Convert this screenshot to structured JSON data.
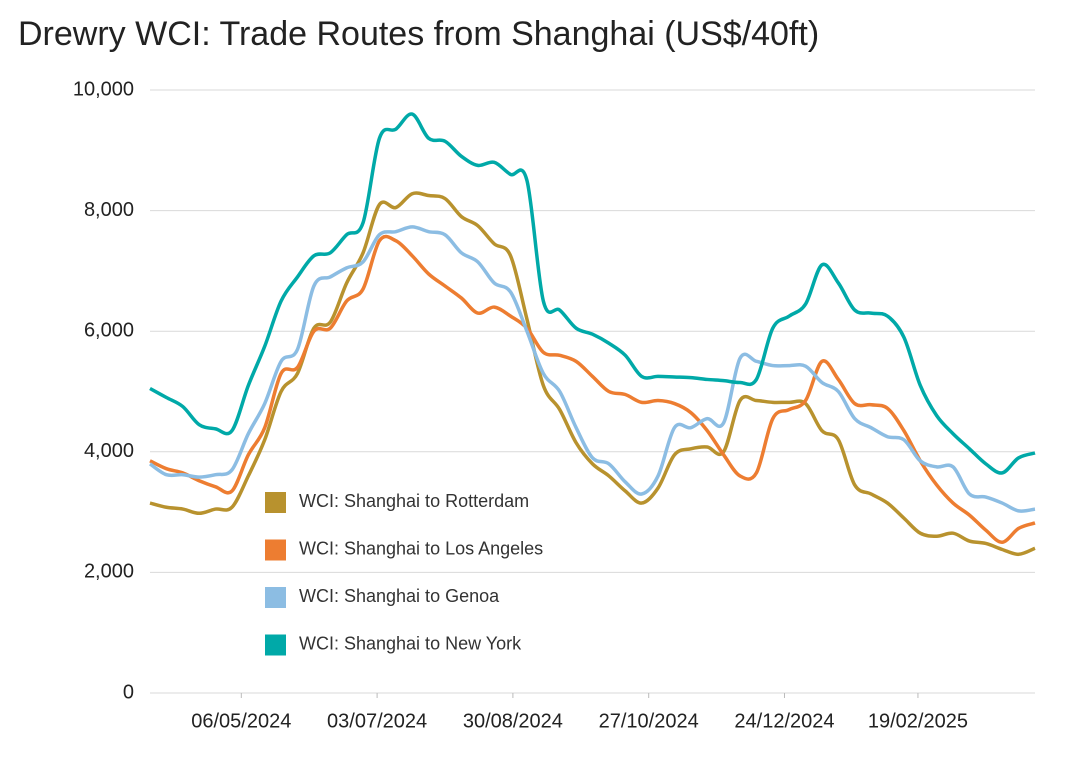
{
  "chart_data": {
    "type": "line",
    "title": "Drewry WCI: Trade Routes from Shanghai (US$/40ft)",
    "x": [
      "28/03/2024",
      "04/04/2024",
      "11/04/2024",
      "18/04/2024",
      "25/04/2024",
      "02/05/2024",
      "09/05/2024",
      "16/05/2024",
      "23/05/2024",
      "30/05/2024",
      "06/06/2024",
      "13/06/2024",
      "20/06/2024",
      "27/06/2024",
      "04/07/2024",
      "11/07/2024",
      "18/07/2024",
      "25/07/2024",
      "01/08/2024",
      "08/08/2024",
      "15/08/2024",
      "22/08/2024",
      "29/08/2024",
      "05/09/2024",
      "12/09/2024",
      "19/09/2024",
      "26/09/2024",
      "03/10/2024",
      "10/10/2024",
      "17/10/2024",
      "24/10/2024",
      "31/10/2024",
      "07/11/2024",
      "14/11/2024",
      "21/11/2024",
      "28/11/2024",
      "05/12/2024",
      "12/12/2024",
      "19/12/2024",
      "26/12/2024",
      "02/01/2025",
      "09/01/2025",
      "16/01/2025",
      "23/01/2025",
      "30/01/2025",
      "06/02/2025",
      "13/02/2025",
      "20/02/2025",
      "27/02/2025",
      "06/03/2025",
      "13/03/2025",
      "20/03/2025",
      "27/03/2025",
      "03/04/2025",
      "10/04/2025"
    ],
    "xlim": [
      "28/03/2024",
      "10/04/2025"
    ],
    "xticks": [
      "06/05/2024",
      "03/07/2024",
      "30/08/2024",
      "27/10/2024",
      "24/12/2024",
      "19/02/2025"
    ],
    "ylim": [
      0,
      10000
    ],
    "yticks": [
      0,
      {
        "value": 2000,
        "label": "2,000"
      },
      {
        "value": 4000,
        "label": "4,000"
      },
      {
        "value": 6000,
        "label": "6,000"
      },
      {
        "value": 8000,
        "label": "8,000"
      },
      {
        "value": 10000,
        "label": "10,000"
      }
    ],
    "grid": true,
    "legend_position": "lower left",
    "series": [
      {
        "name": "WCI: Shanghai to Rotterdam",
        "color": "#b8922e",
        "values": [
          3150,
          3080,
          3050,
          2980,
          3050,
          3080,
          3600,
          4200,
          5000,
          5300,
          6050,
          6150,
          6800,
          7300,
          8100,
          8050,
          8280,
          8250,
          8200,
          7900,
          7750,
          7450,
          7250,
          6200,
          5100,
          4700,
          4150,
          3800,
          3600,
          3350,
          3150,
          3400,
          3950,
          4050,
          4080,
          4000,
          4850,
          4850,
          4820,
          4820,
          4800,
          4350,
          4200,
          3450,
          3300,
          3150,
          2900,
          2650,
          2600,
          2650,
          2520,
          2480,
          2380,
          2300,
          2400
        ]
      },
      {
        "name": "WCI: Shanghai to Los Angeles",
        "color": "#ed7d31",
        "values": [
          3850,
          3720,
          3650,
          3520,
          3420,
          3350,
          3950,
          4400,
          5300,
          5400,
          6000,
          6050,
          6500,
          6700,
          7500,
          7500,
          7250,
          6950,
          6750,
          6550,
          6300,
          6400,
          6250,
          6050,
          5650,
          5600,
          5500,
          5250,
          5000,
          4950,
          4820,
          4850,
          4800,
          4650,
          4350,
          3950,
          3600,
          3650,
          4550,
          4700,
          4850,
          5500,
          5200,
          4800,
          4780,
          4720,
          4350,
          3850,
          3450,
          3150,
          2950,
          2700,
          2500,
          2730,
          2820
        ]
      },
      {
        "name": "WCI: Shanghai to Genoa",
        "color": "#8cbde3",
        "values": [
          3800,
          3620,
          3620,
          3580,
          3620,
          3700,
          4300,
          4800,
          5500,
          5700,
          6750,
          6900,
          7050,
          7150,
          7600,
          7650,
          7730,
          7650,
          7600,
          7300,
          7150,
          6800,
          6650,
          6000,
          5300,
          5000,
          4400,
          3900,
          3800,
          3500,
          3300,
          3600,
          4400,
          4400,
          4550,
          4480,
          5550,
          5500,
          5430,
          5430,
          5420,
          5150,
          5000,
          4550,
          4400,
          4250,
          4200,
          3850,
          3750,
          3750,
          3300,
          3250,
          3150,
          3020,
          3050
        ]
      },
      {
        "name": "WCI: Shanghai to New York",
        "color": "#00a9a8",
        "values": [
          5050,
          4900,
          4750,
          4450,
          4380,
          4350,
          5100,
          5750,
          6500,
          6900,
          7250,
          7300,
          7600,
          7800,
          9200,
          9350,
          9600,
          9200,
          9150,
          8900,
          8750,
          8800,
          8600,
          8500,
          6500,
          6350,
          6050,
          5950,
          5800,
          5600,
          5250,
          5250,
          5240,
          5230,
          5200,
          5180,
          5150,
          5200,
          6050,
          6250,
          6450,
          7100,
          6800,
          6350,
          6300,
          6250,
          5900,
          5100,
          4600,
          4300,
          4050,
          3800,
          3650,
          3900,
          3980
        ]
      }
    ]
  }
}
